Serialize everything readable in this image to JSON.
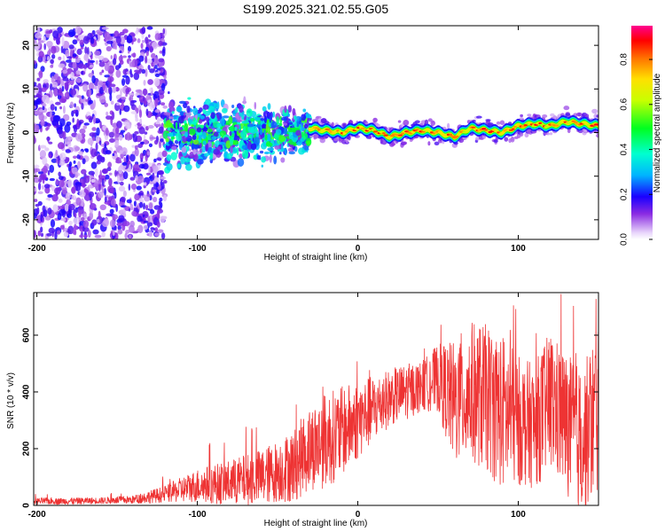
{
  "title": "S199.2025.321.02.55.G05",
  "colors": {
    "snr_line": "#ee3333",
    "spectrogram_low": "#dcc4f4",
    "spectrogram_mid": "#7a1fe8",
    "axis": "#000000"
  },
  "colorbar": {
    "label": "Normalized spectral amplitude",
    "ticks": [
      "0.0",
      "0.2",
      "0.4",
      "0.6",
      "0.8"
    ],
    "range": [
      0.0,
      0.95
    ],
    "colormap": "rainbow-violet-to-magenta"
  },
  "chart_data": [
    {
      "type": "heatmap",
      "name": "spectrogram",
      "title": "S199.2025.321.02.55.G05",
      "xlabel": "Height of straight line (km)",
      "ylabel": "Frequency (Hz)",
      "xlim": [
        -202,
        150
      ],
      "ylim": [
        -24.5,
        24.5
      ],
      "xticks": [
        -200,
        -100,
        0,
        100
      ],
      "xtick_labels": [
        "-200",
        "-100",
        "0",
        "100"
      ],
      "yticks": [
        -20,
        -10,
        0,
        10,
        20
      ],
      "ytick_labels": [
        "-20",
        "-10",
        "0",
        "10",
        "20"
      ],
      "ridge": {
        "description": "dominant tone frequency vs height",
        "x": [
          -30,
          -20,
          -10,
          0,
          10,
          20,
          30,
          40,
          50,
          60,
          70,
          80,
          90,
          100,
          110,
          120,
          130,
          140,
          150
        ],
        "y": [
          1.0,
          0.5,
          0.0,
          1.0,
          0.5,
          -1.0,
          0.0,
          0.5,
          0.0,
          -1.0,
          1.0,
          0.5,
          0.0,
          1.5,
          2.0,
          1.5,
          2.5,
          2.0,
          1.5
        ],
        "amplitude": 0.9
      },
      "noise_regions": [
        {
          "x": [
            -202,
            -120
          ],
          "y_spread": 24,
          "amplitude": 0.15
        },
        {
          "x": [
            -120,
            -30
          ],
          "y_spread": 10,
          "amplitude": 0.3
        }
      ]
    },
    {
      "type": "line",
      "name": "snr",
      "xlabel": "Height of straight line (km)",
      "ylabel": "SNR (10 * v/v)",
      "xlim": [
        -202,
        150
      ],
      "ylim": [
        0,
        750
      ],
      "xticks": [
        -200,
        -100,
        0,
        100
      ],
      "xtick_labels": [
        "-200",
        "-100",
        "0",
        "100"
      ],
      "yticks": [
        0,
        200,
        400,
        600
      ],
      "ytick_labels": [
        "0",
        "200",
        "400",
        "600"
      ],
      "series": [
        {
          "name": "SNR",
          "envelope_x": [
            -202,
            -180,
            -160,
            -140,
            -120,
            -110,
            -100,
            -90,
            -80,
            -70,
            -60,
            -50,
            -40,
            -30,
            -20,
            -10,
            0,
            10,
            20,
            30,
            40,
            50,
            60,
            70,
            80,
            90,
            100,
            110,
            120,
            130,
            140,
            150
          ],
          "envelope_mean": [
            15,
            15,
            17,
            20,
            40,
            55,
            70,
            75,
            80,
            90,
            100,
            120,
            140,
            200,
            230,
            260,
            300,
            340,
            380,
            400,
            420,
            450,
            360,
            400,
            380,
            330,
            300,
            280,
            370,
            290,
            220,
            350
          ],
          "envelope_spread": [
            12,
            12,
            12,
            15,
            30,
            45,
            60,
            70,
            80,
            90,
            100,
            110,
            130,
            150,
            170,
            160,
            140,
            120,
            100,
            100,
            90,
            120,
            220,
            250,
            260,
            280,
            230,
            220,
            250,
            250,
            260,
            300
          ]
        }
      ]
    }
  ]
}
